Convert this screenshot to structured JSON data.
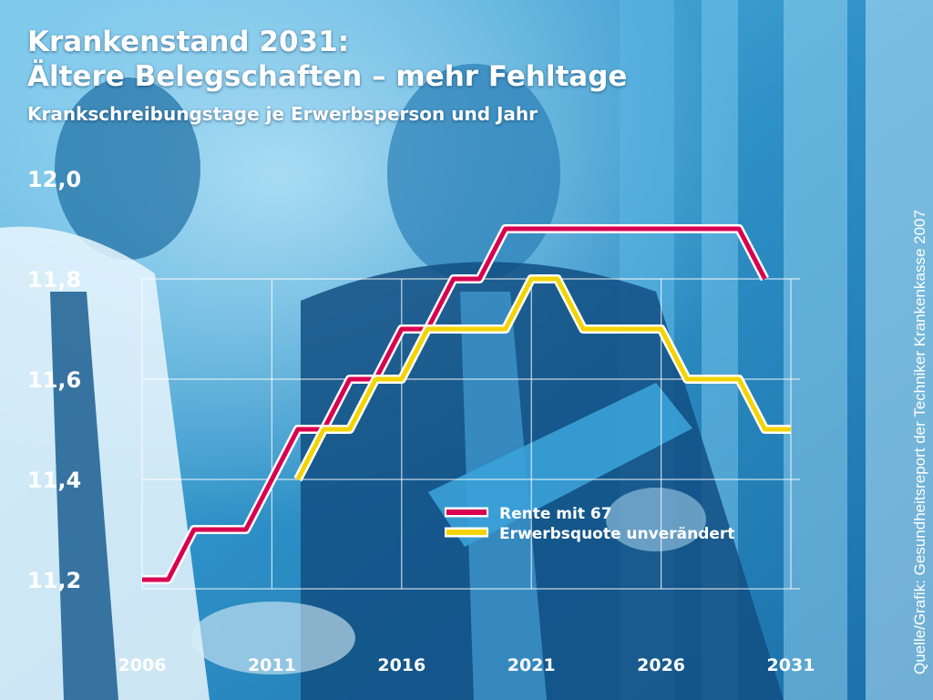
{
  "header": {
    "title_line1": "Krankenstand 2031:",
    "title_line2": "Ältere Belegschaften – mehr Fehltage",
    "subtitle": "Krankschreibungstage je Erwerbsperson und Jahr"
  },
  "source": "Quelle/Grafik: Gesundheitsreport der Techniker Krankenkasse 2007",
  "colors": {
    "background": "#2a8fc4",
    "grid": "#ffffff",
    "series_red": "#d8004f",
    "series_yellow": "#f3d400"
  },
  "chart_data": {
    "type": "line",
    "title": "Krankenstand 2031: Ältere Belegschaften – mehr Fehltage",
    "subtitle": "Krankschreibungstage je Erwerbsperson und Jahr",
    "xlabel": "",
    "ylabel": "",
    "xlim": [
      2006,
      2031
    ],
    "ylim": [
      11.2,
      12.0
    ],
    "x_ticks": [
      "2006",
      "2011",
      "2016",
      "2021",
      "2026",
      "2031"
    ],
    "y_ticks": [
      "11,2",
      "11,4",
      "11,6",
      "11,8",
      "12,0"
    ],
    "grid": true,
    "legend_position": "lower-right-inside",
    "series": [
      {
        "name": "Rente mit 67",
        "color": "#d8004f",
        "points": [
          [
            2006,
            11.2
          ],
          [
            2007,
            11.2
          ],
          [
            2008,
            11.3
          ],
          [
            2009,
            11.3
          ],
          [
            2010,
            11.3
          ],
          [
            2011,
            11.4
          ],
          [
            2012,
            11.5
          ],
          [
            2013,
            11.5
          ],
          [
            2014,
            11.6
          ],
          [
            2015,
            11.6
          ],
          [
            2016,
            11.7
          ],
          [
            2017,
            11.7
          ],
          [
            2018,
            11.8
          ],
          [
            2019,
            11.8
          ],
          [
            2020,
            11.9
          ],
          [
            2021,
            11.9
          ],
          [
            2022,
            11.9
          ],
          [
            2023,
            11.9
          ],
          [
            2024,
            11.9
          ],
          [
            2025,
            11.9
          ],
          [
            2026,
            11.9
          ],
          [
            2027,
            11.9
          ],
          [
            2028,
            11.9
          ],
          [
            2029,
            11.9
          ],
          [
            2030,
            11.8
          ]
        ]
      },
      {
        "name": "Erwerbsquote unverändert",
        "color": "#f3d400",
        "points": [
          [
            2012,
            11.4
          ],
          [
            2013,
            11.5
          ],
          [
            2014,
            11.5
          ],
          [
            2015,
            11.6
          ],
          [
            2016,
            11.6
          ],
          [
            2017,
            11.7
          ],
          [
            2018,
            11.7
          ],
          [
            2019,
            11.7
          ],
          [
            2020,
            11.7
          ],
          [
            2021,
            11.8
          ],
          [
            2022,
            11.8
          ],
          [
            2023,
            11.7
          ],
          [
            2024,
            11.7
          ],
          [
            2025,
            11.7
          ],
          [
            2026,
            11.7
          ],
          [
            2027,
            11.6
          ],
          [
            2028,
            11.6
          ],
          [
            2029,
            11.6
          ],
          [
            2030,
            11.5
          ],
          [
            2031,
            11.5
          ]
        ]
      }
    ]
  }
}
